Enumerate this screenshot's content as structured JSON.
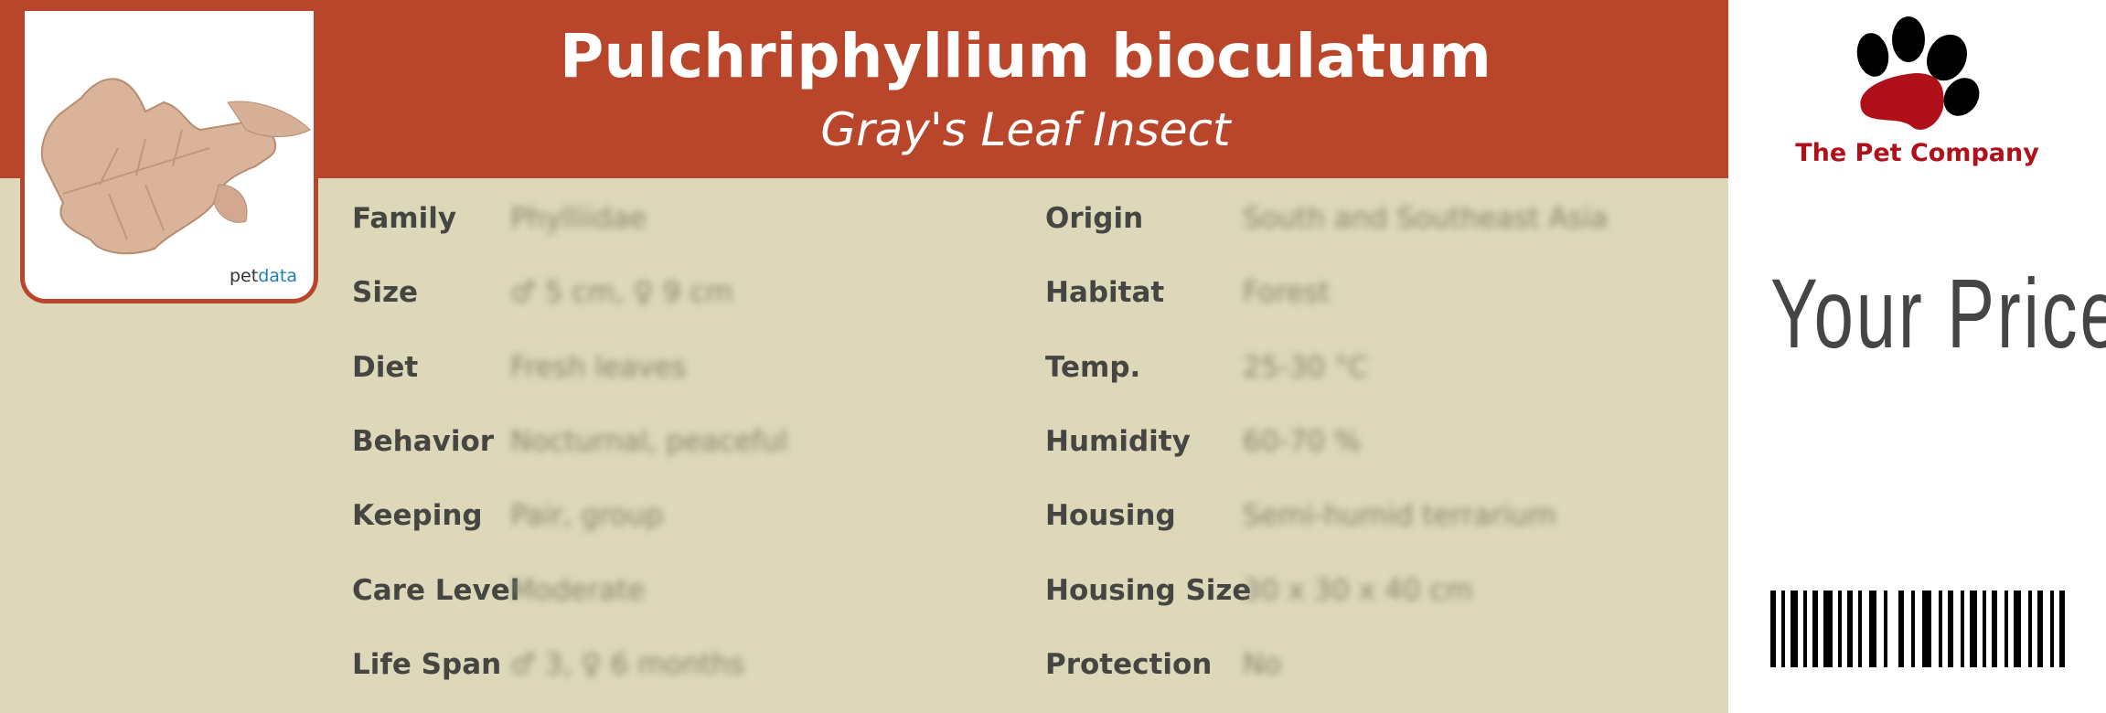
{
  "header": {
    "title": "Pulchriphyllium bioculatum",
    "subtitle": "Gray's Leaf Insect"
  },
  "photo": {
    "watermark_prefix": "pet",
    "watermark_suffix": "data"
  },
  "left_fields": [
    {
      "label": "Family",
      "value": "Phylliidae"
    },
    {
      "label": "Size",
      "value": "♂ 5 cm, ♀ 9 cm"
    },
    {
      "label": "Diet",
      "value": "Fresh leaves"
    },
    {
      "label": "Behavior",
      "value": "Nocturnal, peaceful"
    },
    {
      "label": "Keeping",
      "value": "Pair, group"
    },
    {
      "label": "Care Level",
      "value": "Moderate"
    },
    {
      "label": "Life Span",
      "value": "♂ 3, ♀ 6 months"
    }
  ],
  "right_fields": [
    {
      "label": "Origin",
      "value": "South and Southeast Asia"
    },
    {
      "label": "Habitat",
      "value": "Forest"
    },
    {
      "label": "Temp.",
      "value": "25-30 °C"
    },
    {
      "label": "Humidity",
      "value": "60-70 %"
    },
    {
      "label": "Housing",
      "value": "Semi-humid terrarium"
    },
    {
      "label": "Housing Size",
      "value": "30 x 30 x 40 cm"
    },
    {
      "label": "Protection",
      "value": "No"
    }
  ],
  "sidebar": {
    "company": "The Pet Company",
    "price_label": "Your Price",
    "brand_red": "#b0101a"
  },
  "colors": {
    "header": "#b9462b",
    "background": "#dcd8b9",
    "label": "#454542"
  }
}
